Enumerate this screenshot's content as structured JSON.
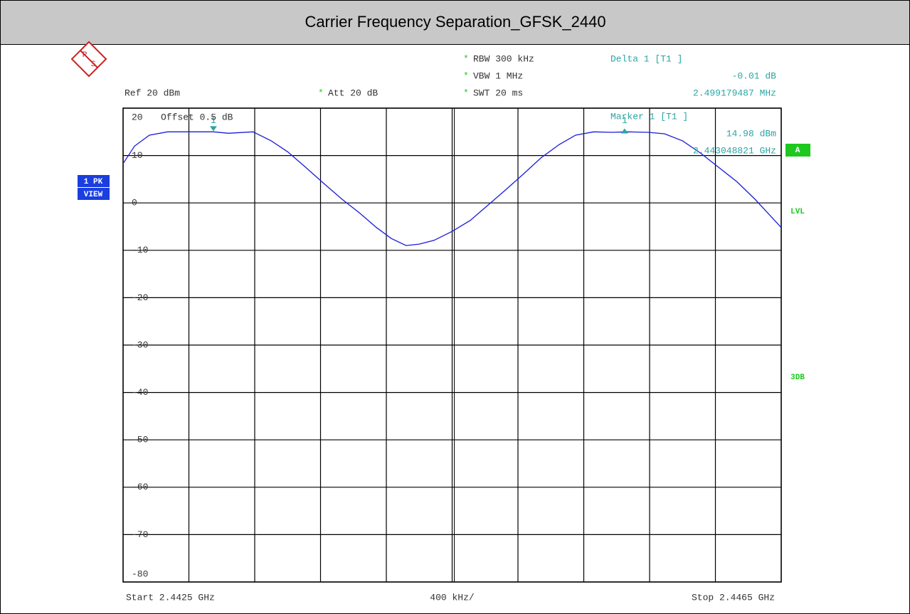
{
  "chart_data": {
    "type": "line",
    "title": "Carrier Frequency Separation_GFSK_2440",
    "xlim": [
      2.4425,
      2.4465
    ],
    "xticks": [
      2.4425,
      2.4429,
      2.4433,
      2.4437,
      2.4441,
      2.4445,
      2.4449,
      2.4453,
      2.4457,
      2.4461,
      2.4465
    ],
    "ylim": [
      -80,
      20
    ],
    "yticks": [
      20,
      10,
      0,
      -10,
      -20,
      -30,
      -40,
      -50,
      -60,
      -70,
      -80
    ],
    "grid": true,
    "series": [
      {
        "name": "1 PK",
        "color": "#1a1adb",
        "x": [
          2.4425,
          2.44257,
          2.44266,
          2.44277,
          2.4429,
          2.44305,
          2.44314,
          2.44329,
          2.4434,
          2.4435,
          2.44361,
          2.44372,
          2.44383,
          2.44394,
          2.44404,
          2.44413,
          2.44422,
          2.4443,
          2.44439,
          2.4445,
          2.44461,
          2.44471,
          2.44482,
          2.44493,
          2.44504,
          2.44515,
          2.44525,
          2.44536,
          2.44547,
          2.44556,
          2.44569,
          2.44579,
          2.4459,
          2.44601,
          2.44612,
          2.44623,
          2.44634,
          2.44642,
          2.4465
        ],
        "values": [
          8.3,
          12,
          14.3,
          15,
          15,
          15,
          14.7,
          15,
          13.1,
          10.8,
          7.5,
          4.1,
          0.8,
          -2.2,
          -5.2,
          -7.5,
          -9,
          -8.7,
          -7.9,
          -6,
          -3.7,
          -0.7,
          2.6,
          6,
          9.5,
          12.3,
          14.3,
          15,
          14.9,
          15,
          14.9,
          14.6,
          13.1,
          10.5,
          7.5,
          4.5,
          0.8,
          -2.2,
          -5.2
        ]
      }
    ],
    "markers": [
      {
        "label": "1",
        "x": 2.443049,
        "value": 14.98,
        "color": "#2aa5a5"
      },
      {
        "label": "1",
        "x": 2.445548,
        "value": 14.97,
        "color": "#2aa5a5"
      }
    ],
    "settings": [
      {
        "star": "*",
        "text": "RBW  300 kHz"
      },
      {
        "star": "*",
        "text": "VBW  1 MHz"
      },
      {
        "star": "*",
        "text": "SWT  20 ms"
      }
    ],
    "ref": "Ref  20 dBm",
    "att": {
      "star": "*",
      "text": "Att  20 dB"
    },
    "delta": [
      "Delta 1 [T1 ]",
      "-0.01 dB",
      "2.499179487 MHz"
    ],
    "marker_readout": [
      "Marker 1 [T1 ]",
      "14.98 dBm",
      "2.443048821 GHz"
    ],
    "offset": "Offset  0.5 dB",
    "trace_mode": [
      "1 PK",
      "VIEW"
    ],
    "side_labels": [
      "A",
      "LVL",
      "3DB"
    ],
    "start": "Start 2.4425 GHz",
    "span": "400 kHz/",
    "stop": "Stop 2.4465 GHz"
  }
}
